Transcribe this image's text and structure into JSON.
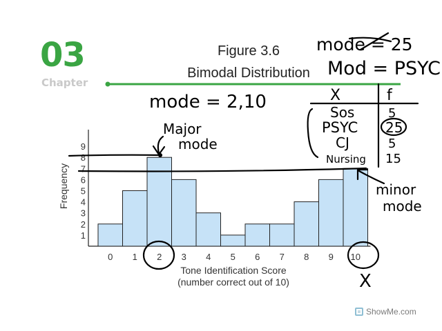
{
  "slide": {
    "chapter_number": "03",
    "chapter_word": "Chapter",
    "figure_title": "Figure 3.6",
    "figure_subtitle": "Bimodal Distribution",
    "watermark": "ShowMe.com"
  },
  "annotations": {
    "mode_struck": "mode = 25",
    "mode_psyc": "Mod = PSYC",
    "mode_values": "mode = 2,10",
    "major_mode": [
      "Major",
      "mode"
    ],
    "minor_mode": [
      "minor",
      "mode"
    ],
    "table_headers": [
      "X",
      "f"
    ],
    "table_rows": [
      {
        "x": "Sos",
        "f": "5"
      },
      {
        "x": "PSYC",
        "f": "25"
      },
      {
        "x": "CJ",
        "f": "5"
      },
      {
        "x": "Nursing",
        "f": "15"
      }
    ],
    "x_mark": "X"
  },
  "chart_data": {
    "type": "bar",
    "title": "",
    "xlabel": "Tone Identification Score",
    "xlabel_line2": "(number correct out of 10)",
    "ylabel": "Frequency",
    "categories": [
      "0",
      "1",
      "2",
      "3",
      "4",
      "5",
      "6",
      "7",
      "8",
      "9",
      "10"
    ],
    "values": [
      2,
      5,
      8,
      6,
      3,
      1,
      2,
      2,
      4,
      6,
      7
    ],
    "ylim": [
      0,
      9
    ],
    "yticks": [
      "1",
      "2",
      "3",
      "4",
      "5",
      "6",
      "7",
      "8",
      "9"
    ],
    "bar_color": "#c6e2f7",
    "bar_edge": "#222222",
    "grid": false,
    "legend": "none"
  },
  "colors": {
    "accent_green": "#3aa543",
    "chapter_gray": "#c9c9c9"
  }
}
